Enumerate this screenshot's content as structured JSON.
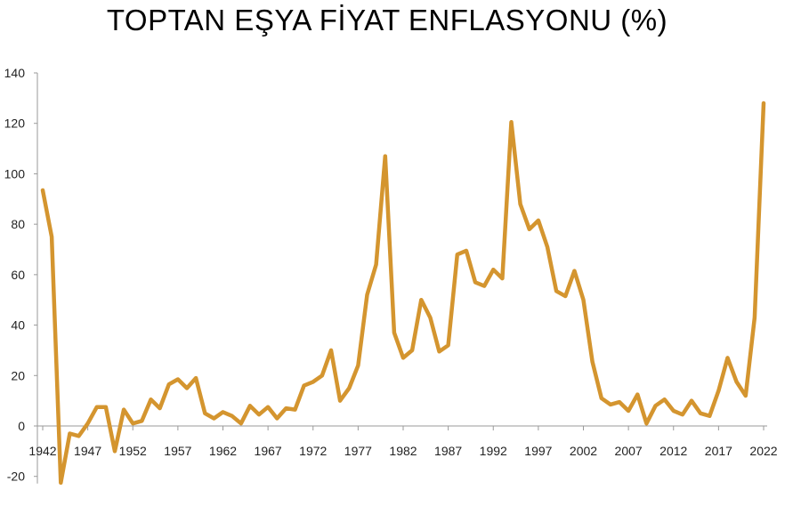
{
  "chart_data": {
    "type": "line",
    "title": "TOPTAN EŞYA FİYAT ENFLASYONU (%)",
    "xlabel": "",
    "ylabel": "",
    "color": "#D4952F",
    "grid": false,
    "legend": "none",
    "xlim": [
      1942,
      2022
    ],
    "ylim": [
      -20,
      140
    ],
    "yticks": [
      -20,
      0,
      20,
      40,
      60,
      80,
      100,
      120,
      140
    ],
    "xticks": [
      1942,
      1947,
      1952,
      1957,
      1962,
      1967,
      1972,
      1977,
      1982,
      1987,
      1992,
      1997,
      2002,
      2007,
      2012,
      2017,
      2022
    ],
    "series": [
      {
        "x": [
          1942,
          1943,
          1944,
          1945,
          1946,
          1947,
          1948,
          1949,
          1950,
          1951,
          1952,
          1953,
          1954,
          1955,
          1956,
          1957,
          1958,
          1959,
          1960,
          1961,
          1962,
          1963,
          1964,
          1965,
          1966,
          1967,
          1968,
          1969,
          1970,
          1971,
          1972,
          1973,
          1974,
          1975,
          1976,
          1977,
          1978,
          1979,
          1980,
          1981,
          1982,
          1983,
          1984,
          1985,
          1986,
          1987,
          1988,
          1989,
          1990,
          1991,
          1992,
          1993,
          1994,
          1995,
          1996,
          1997,
          1998,
          1999,
          2000,
          2001,
          2002,
          2003,
          2004,
          2005,
          2006,
          2007,
          2008,
          2009,
          2010,
          2011,
          2012,
          2013,
          2014,
          2015,
          2016,
          2017,
          2018,
          2019,
          2020,
          2021,
          2022
        ],
        "values": [
          93.5,
          75,
          -22.5,
          -3,
          -4,
          1,
          7.5,
          7.5,
          -10,
          6.5,
          1,
          2,
          10.5,
          7,
          16.5,
          18.5,
          15,
          19,
          5,
          3,
          5.5,
          4,
          1,
          8,
          4.5,
          7.5,
          3,
          7,
          6.5,
          16,
          17.5,
          20,
          30,
          10,
          15,
          24,
          52,
          64,
          107,
          37,
          27,
          30,
          50,
          43,
          29.5,
          32,
          68,
          69.5,
          57,
          55.5,
          62,
          58.5,
          120.5,
          88,
          78,
          81.5,
          71,
          53.5,
          51.5,
          61.5,
          50,
          25.5,
          11,
          8.5,
          9.5,
          6,
          12.5,
          1,
          8,
          10.5,
          6,
          4.5,
          10,
          5,
          4,
          14,
          27,
          17.5,
          12,
          43,
          128
        ]
      }
    ]
  }
}
